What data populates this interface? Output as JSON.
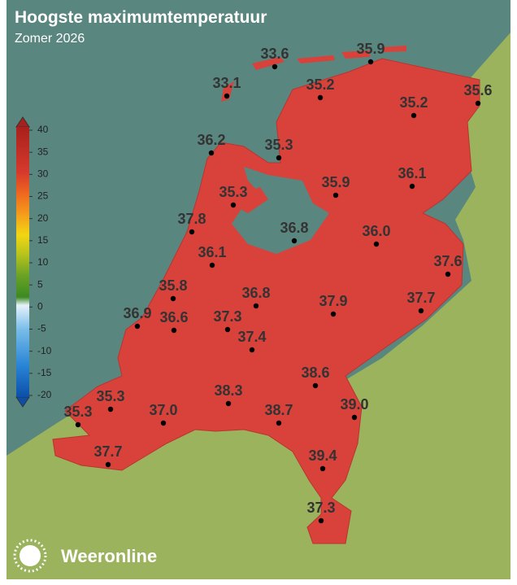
{
  "header": {
    "title": "Hoogste maximumtemperatuur",
    "subtitle": "Zomer 2026"
  },
  "legend": {
    "ticks": [
      40,
      35,
      30,
      25,
      20,
      15,
      10,
      5,
      0,
      -5,
      -10,
      -15,
      -20
    ]
  },
  "stations": [
    "33.6",
    "35.9",
    "33.1",
    "35.2",
    "35.6",
    "35.2",
    "36.2",
    "35.3",
    "35.9",
    "36.1",
    "35.3",
    "37.8",
    "36.8",
    "36.0",
    "36.1",
    "37.6",
    "35.8",
    "36.8",
    "37.9",
    "37.7",
    "36.9",
    "36.6",
    "37.3",
    "37.4",
    "38.6",
    "35.3",
    "38.3",
    "39.0",
    "35.3",
    "37.0",
    "38.7",
    "37.7",
    "39.4",
    "37.3"
  ],
  "brand": "Weeronline"
}
